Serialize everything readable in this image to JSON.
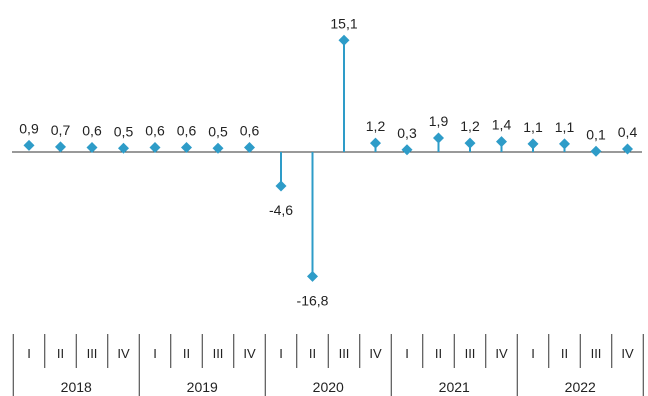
{
  "chart_data": {
    "type": "line",
    "series_color": "#2E9CC8",
    "grid": false,
    "legend": "none",
    "ylim": [
      -18,
      16
    ],
    "categories": [
      "2018-I",
      "2018-II",
      "2018-III",
      "2018-IV",
      "2019-I",
      "2019-II",
      "2019-III",
      "2019-IV",
      "2020-I",
      "2020-II",
      "2020-III",
      "2020-IV",
      "2021-I",
      "2021-II",
      "2021-III",
      "2021-IV",
      "2022-I",
      "2022-II",
      "2022-III",
      "2022-IV"
    ],
    "values": [
      0.9,
      0.7,
      0.6,
      0.5,
      0.6,
      0.6,
      0.5,
      0.6,
      -4.6,
      -16.8,
      15.1,
      1.2,
      0.3,
      1.9,
      1.2,
      1.4,
      1.1,
      1.1,
      0.1,
      0.4
    ],
    "data_labels": [
      "0,9",
      "0,7",
      "0,6",
      "0,5",
      "0,6",
      "0,6",
      "0,5",
      "0,6",
      "-4,6",
      "-16,8",
      "15,1",
      "1,2",
      "0,3",
      "1,9",
      "1,2",
      "1,4",
      "1,1",
      "1,1",
      "0,1",
      "0,4"
    ],
    "quarters": [
      "I",
      "II",
      "III",
      "IV"
    ],
    "years": [
      "2018",
      "2019",
      "2020",
      "2021",
      "2022"
    ]
  }
}
